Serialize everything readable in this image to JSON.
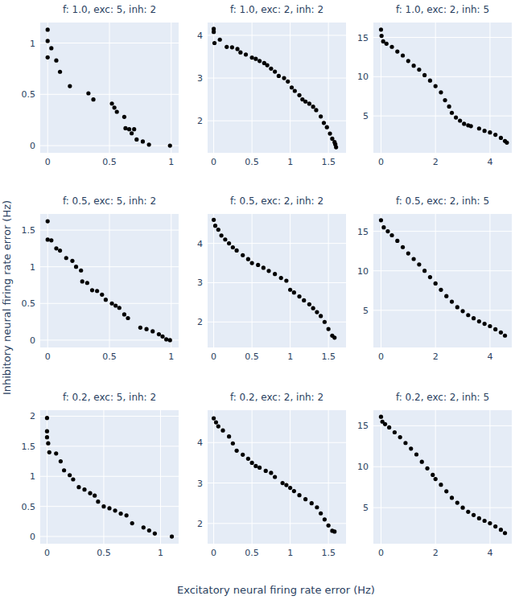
{
  "x_label": "Excitatory neural firing rate error (Hz)",
  "y_label": "Inhibitory neural firing rate error (Hz)",
  "chart_data": [
    {
      "type": "scatter",
      "title": "f: 1.0, exc: 5, inh: 2",
      "x": [
        0,
        0,
        0,
        0.03,
        0.07,
        0.1,
        0.18,
        0.33,
        0.37,
        0.52,
        0.54,
        0.56,
        0.62,
        0.63,
        0.66,
        0.68,
        0.7,
        0.72,
        0.77,
        0.82,
        0.99
      ],
      "series": [
        {
          "values": [
            1.13,
            1.02,
            0.86,
            0.95,
            0.83,
            0.72,
            0.58,
            0.51,
            0.45,
            0.41,
            0.37,
            0.33,
            0.28,
            0.17,
            0.16,
            0.12,
            0.16,
            0.06,
            0.04,
            0.01,
            0.0
          ],
          "color": "#000000",
          "marker": "circle"
        }
      ],
      "xlim": [
        -0.06,
        1.06
      ],
      "ylim": [
        -0.07,
        1.2
      ],
      "xticks": [
        0,
        0.5,
        1
      ],
      "yticks": [
        0,
        0.5,
        1
      ],
      "grid": true
    },
    {
      "type": "scatter",
      "title": "f: 1.0, exc: 2, inh: 2",
      "x": [
        0,
        0,
        0.01,
        0.08,
        0.17,
        0.24,
        0.31,
        0.35,
        0.42,
        0.5,
        0.55,
        0.6,
        0.66,
        0.7,
        0.75,
        0.8,
        0.85,
        0.92,
        0.97,
        1.02,
        1.06,
        1.12,
        1.16,
        1.2,
        1.25,
        1.3,
        1.34,
        1.4,
        1.44,
        1.48,
        1.52,
        1.55,
        1.58,
        1.6,
        1.59
      ],
      "series": [
        {
          "values": [
            4.15,
            4.08,
            3.82,
            3.9,
            3.73,
            3.72,
            3.68,
            3.6,
            3.55,
            3.48,
            3.45,
            3.4,
            3.35,
            3.3,
            3.22,
            3.15,
            3.05,
            3.0,
            2.92,
            2.78,
            2.7,
            2.6,
            2.5,
            2.45,
            2.4,
            2.33,
            2.25,
            2.1,
            1.95,
            1.85,
            1.7,
            1.58,
            1.5,
            1.38,
            1.45
          ],
          "color": "#000000",
          "marker": "circle"
        }
      ],
      "xlim": [
        -0.08,
        1.73
      ],
      "ylim": [
        1.25,
        4.3
      ],
      "xticks": [
        0,
        0.5,
        1,
        1.5
      ],
      "yticks": [
        2,
        3,
        4
      ],
      "grid": true
    },
    {
      "type": "scatter",
      "title": "f: 1.0, exc: 2, inh: 5",
      "x": [
        0,
        0.02,
        0.08,
        0.2,
        0.4,
        0.6,
        0.8,
        1.0,
        1.2,
        1.4,
        1.6,
        1.8,
        2.0,
        2.2,
        2.35,
        2.5,
        2.6,
        2.75,
        2.9,
        3.05,
        3.2,
        3.3,
        3.6,
        3.8,
        4.0,
        4.2,
        4.4,
        4.55,
        4.62
      ],
      "series": [
        {
          "values": [
            16,
            15.2,
            14.5,
            14.2,
            13.8,
            13.2,
            12.7,
            12.0,
            11.4,
            10.9,
            10.2,
            9.5,
            8.8,
            8.0,
            7.0,
            6.2,
            5.4,
            4.8,
            4.4,
            4.0,
            3.8,
            3.7,
            3.4,
            3.1,
            2.9,
            2.6,
            2.2,
            1.8,
            1.6
          ],
          "color": "#000000",
          "marker": "circle"
        }
      ],
      "xlim": [
        -0.28,
        4.8
      ],
      "ylim": [
        0.3,
        16.9
      ],
      "xticks": [
        0,
        2,
        4
      ],
      "yticks": [
        5,
        10,
        15
      ],
      "grid": true
    },
    {
      "type": "scatter",
      "title": "f: 0.5, exc: 5, inh: 2",
      "x": [
        0,
        0,
        0.03,
        0.07,
        0.1,
        0.15,
        0.2,
        0.23,
        0.27,
        0.28,
        0.32,
        0.36,
        0.4,
        0.44,
        0.47,
        0.52,
        0.55,
        0.58,
        0.62,
        0.65,
        0.75,
        0.8,
        0.85,
        0.9,
        0.93,
        0.96,
        0.99
      ],
      "series": [
        {
          "values": [
            1.62,
            1.37,
            1.36,
            1.25,
            1.22,
            1.12,
            1.08,
            1.0,
            0.95,
            0.8,
            0.78,
            0.68,
            0.67,
            0.62,
            0.55,
            0.5,
            0.47,
            0.44,
            0.35,
            0.3,
            0.17,
            0.15,
            0.12,
            0.08,
            0.05,
            0.01,
            0.0
          ],
          "color": "#000000",
          "marker": "circle"
        }
      ],
      "xlim": [
        -0.06,
        1.06
      ],
      "ylim": [
        -0.1,
        1.72
      ],
      "xticks": [
        0,
        0.5,
        1
      ],
      "yticks": [
        0,
        0.5,
        1,
        1.5
      ],
      "grid": true
    },
    {
      "type": "scatter",
      "title": "f: 0.5, exc: 2, inh: 2",
      "x": [
        0,
        0.02,
        0.06,
        0.1,
        0.15,
        0.2,
        0.25,
        0.3,
        0.38,
        0.45,
        0.5,
        0.58,
        0.65,
        0.72,
        0.8,
        0.88,
        0.95,
        1.0,
        1.05,
        1.12,
        1.18,
        1.25,
        1.3,
        1.35,
        1.4,
        1.45,
        1.5,
        1.55,
        1.58
      ],
      "series": [
        {
          "values": [
            4.6,
            4.45,
            4.35,
            4.2,
            4.1,
            4.0,
            3.9,
            3.82,
            3.7,
            3.6,
            3.5,
            3.45,
            3.38,
            3.3,
            3.22,
            3.12,
            3.05,
            2.82,
            2.75,
            2.65,
            2.55,
            2.45,
            2.35,
            2.25,
            2.15,
            2.0,
            1.82,
            1.65,
            1.6
          ],
          "color": "#000000",
          "marker": "circle"
        }
      ],
      "xlim": [
        -0.08,
        1.73
      ],
      "ylim": [
        1.35,
        4.75
      ],
      "xticks": [
        0,
        0.5,
        1,
        1.5
      ],
      "yticks": [
        2,
        3,
        4
      ],
      "grid": true
    },
    {
      "type": "scatter",
      "title": "f: 0.5, exc: 2, inh: 5",
      "x": [
        0,
        0.1,
        0.25,
        0.4,
        0.6,
        0.8,
        1.0,
        1.2,
        1.4,
        1.6,
        1.8,
        2.0,
        2.2,
        2.4,
        2.6,
        2.8,
        3.0,
        3.2,
        3.4,
        3.6,
        3.8,
        4.0,
        4.2,
        4.4,
        4.55
      ],
      "series": [
        {
          "values": [
            16.4,
            15.5,
            15.0,
            14.5,
            13.8,
            13.0,
            12.2,
            11.5,
            10.8,
            10.0,
            9.2,
            8.4,
            7.6,
            6.8,
            6.1,
            5.4,
            4.9,
            4.4,
            4.0,
            3.6,
            3.3,
            3.0,
            2.6,
            2.2,
            1.8
          ],
          "color": "#000000",
          "marker": "circle"
        }
      ],
      "xlim": [
        -0.28,
        4.8
      ],
      "ylim": [
        0.3,
        17.2
      ],
      "xticks": [
        0,
        2,
        4
      ],
      "yticks": [
        5,
        10,
        15
      ],
      "grid": true
    },
    {
      "type": "scatter",
      "title": "f: 0.2, exc: 5, inh: 2",
      "x": [
        0,
        0,
        0,
        0.01,
        0.02,
        0.08,
        0.12,
        0.15,
        0.2,
        0.23,
        0.28,
        0.33,
        0.38,
        0.42,
        0.45,
        0.5,
        0.55,
        0.6,
        0.65,
        0.7,
        0.75,
        0.85,
        0.9,
        0.95,
        1.1
      ],
      "series": [
        {
          "values": [
            1.97,
            1.75,
            1.65,
            1.55,
            1.4,
            1.38,
            1.25,
            1.1,
            1.02,
            0.95,
            0.82,
            0.78,
            0.72,
            0.68,
            0.58,
            0.5,
            0.47,
            0.43,
            0.38,
            0.35,
            0.22,
            0.15,
            0.1,
            0.05,
            0.0
          ],
          "color": "#000000",
          "marker": "circle"
        }
      ],
      "xlim": [
        -0.06,
        1.16
      ],
      "ylim": [
        -0.12,
        2.1
      ],
      "xticks": [
        0,
        0.5,
        1
      ],
      "yticks": [
        0,
        0.5,
        1,
        1.5,
        2
      ],
      "grid": true
    },
    {
      "type": "scatter",
      "title": "f: 0.2, exc: 2, inh: 2",
      "x": [
        0,
        0.03,
        0.06,
        0.12,
        0.2,
        0.25,
        0.3,
        0.38,
        0.45,
        0.5,
        0.55,
        0.6,
        0.68,
        0.75,
        0.8,
        0.9,
        0.95,
        1.0,
        1.05,
        1.12,
        1.2,
        1.28,
        1.35,
        1.4,
        1.45,
        1.5,
        1.55,
        1.58
      ],
      "series": [
        {
          "values": [
            4.6,
            4.5,
            4.4,
            4.3,
            4.15,
            3.98,
            3.8,
            3.7,
            3.6,
            3.5,
            3.42,
            3.38,
            3.3,
            3.25,
            3.15,
            3.0,
            2.95,
            2.88,
            2.8,
            2.7,
            2.6,
            2.5,
            2.4,
            2.25,
            2.1,
            1.95,
            1.82,
            1.8
          ],
          "color": "#000000",
          "marker": "circle"
        }
      ],
      "xlim": [
        -0.08,
        1.73
      ],
      "ylim": [
        1.5,
        4.8
      ],
      "xticks": [
        0,
        0.5,
        1,
        1.5
      ],
      "yticks": [
        2,
        3,
        4
      ],
      "grid": true
    },
    {
      "type": "scatter",
      "title": "f: 0.2, exc: 2, inh: 5",
      "x": [
        0,
        0.05,
        0.15,
        0.3,
        0.5,
        0.7,
        0.9,
        1.1,
        1.3,
        1.5,
        1.7,
        1.9,
        2.0,
        2.2,
        2.4,
        2.6,
        2.8,
        3.0,
        3.2,
        3.4,
        3.6,
        3.8,
        4.0,
        4.2,
        4.4,
        4.55
      ],
      "series": [
        {
          "values": [
            16.1,
            15.5,
            15.2,
            14.8,
            14.2,
            13.6,
            12.9,
            12.2,
            11.5,
            10.6,
            9.8,
            9.0,
            8.5,
            7.8,
            7.0,
            6.2,
            5.6,
            5.0,
            4.5,
            4.1,
            3.7,
            3.4,
            3.1,
            2.7,
            2.3,
            1.9
          ],
          "color": "#000000",
          "marker": "circle"
        }
      ],
      "xlim": [
        -0.28,
        4.8
      ],
      "ylim": [
        0.6,
        16.9
      ],
      "xticks": [
        0,
        2,
        4
      ],
      "yticks": [
        5,
        10,
        15
      ],
      "grid": true
    }
  ]
}
